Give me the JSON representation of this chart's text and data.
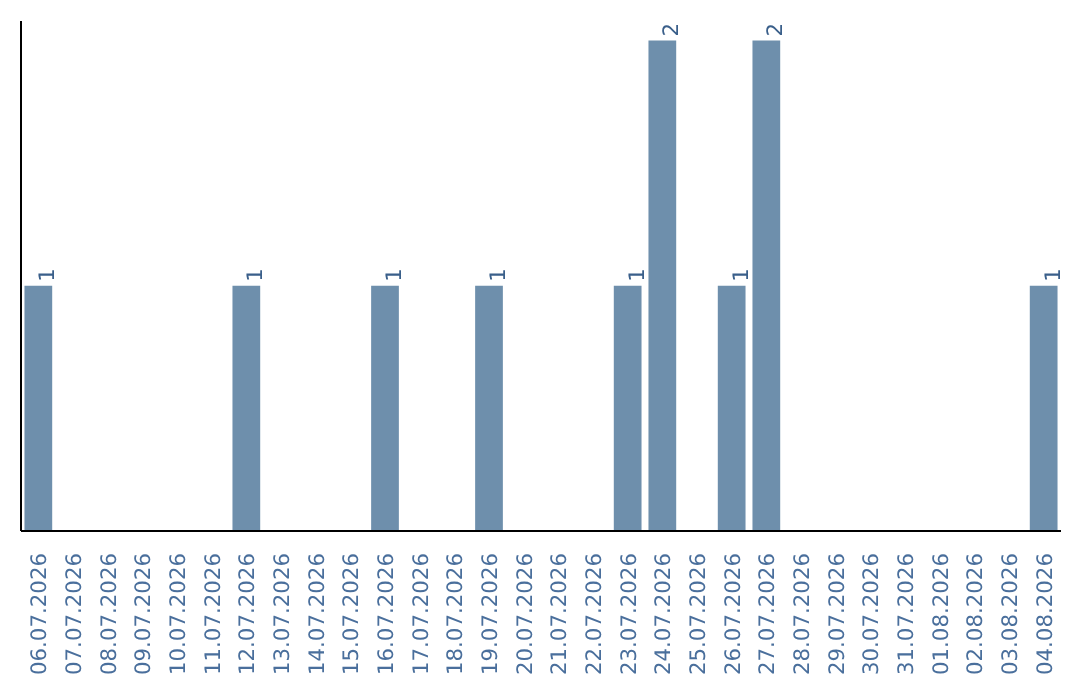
{
  "chart_data": {
    "type": "bar",
    "categories": [
      "06.07.2026",
      "07.07.2026",
      "08.07.2026",
      "09.07.2026",
      "10.07.2026",
      "11.07.2026",
      "12.07.2026",
      "13.07.2026",
      "14.07.2026",
      "15.07.2026",
      "16.07.2026",
      "17.07.2026",
      "18.07.2026",
      "19.07.2026",
      "20.07.2026",
      "21.07.2026",
      "22.07.2026",
      "23.07.2026",
      "24.07.2026",
      "25.07.2026",
      "26.07.2026",
      "27.07.2026",
      "28.07.2026",
      "29.07.2026",
      "30.07.2026",
      "31.07.2026",
      "01.08.2026",
      "02.08.2026",
      "03.08.2026",
      "04.08.2026"
    ],
    "values": [
      1,
      0,
      0,
      0,
      0,
      0,
      1,
      0,
      0,
      0,
      1,
      0,
      0,
      1,
      0,
      0,
      0,
      1,
      2,
      0,
      1,
      2,
      0,
      0,
      0,
      0,
      0,
      0,
      0,
      1
    ],
    "value_labels": [
      "1",
      null,
      null,
      null,
      null,
      null,
      "1",
      null,
      null,
      null,
      "1",
      null,
      null,
      "1",
      null,
      null,
      null,
      "1",
      "2",
      null,
      "1",
      "2",
      null,
      null,
      null,
      null,
      null,
      null,
      null,
      "1"
    ],
    "color": "#6e8fac",
    "tick_labels": "x"
  }
}
